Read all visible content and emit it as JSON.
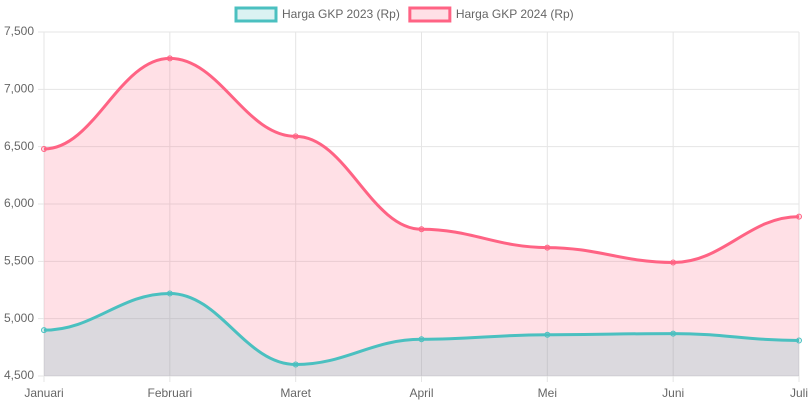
{
  "chart_data": {
    "type": "line",
    "categories": [
      "Januari",
      "Februari",
      "Maret",
      "April",
      "Mei",
      "Juni",
      "Juli"
    ],
    "series": [
      {
        "name": "Harga GKP 2023 (Rp)",
        "color": "#4bc0c0",
        "fill_color": "rgba(75,192,192,0.2)",
        "values": [
          4900,
          5220,
          4600,
          4820,
          4860,
          4870,
          4810
        ]
      },
      {
        "name": "Harga GKP 2024 (Rp)",
        "color": "#ff6384",
        "fill_color": "rgba(255,99,132,0.2)",
        "values": [
          6480,
          7270,
          6590,
          5780,
          5620,
          5490,
          5890
        ]
      }
    ],
    "ylim": [
      4500,
      7500
    ],
    "yticks": [
      {
        "value": 4500,
        "label": "4,500"
      },
      {
        "value": 5000,
        "label": "5,000"
      },
      {
        "value": 5500,
        "label": "5,500"
      },
      {
        "value": 6000,
        "label": "6,000"
      },
      {
        "value": 6500,
        "label": "6,500"
      },
      {
        "value": 7000,
        "label": "7,000"
      },
      {
        "value": 7500,
        "label": "7,500"
      }
    ],
    "grid": true,
    "fill": true,
    "legend": "top"
  }
}
